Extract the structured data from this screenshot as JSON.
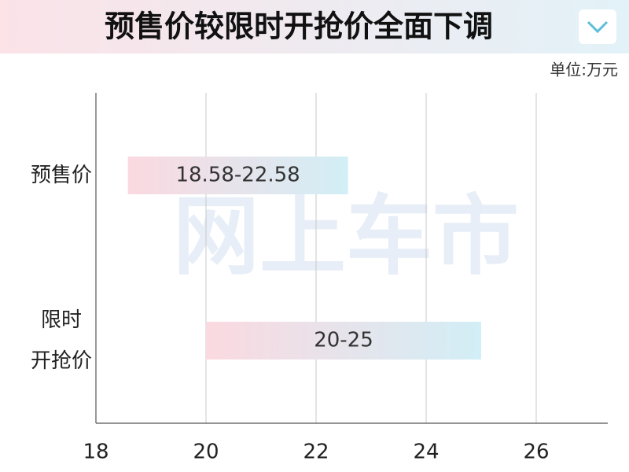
{
  "chart_data": {
    "type": "range-bar",
    "title": "预售价较限时开抢价全面下调",
    "unit": "单位:万元",
    "watermark": "网上车市",
    "categories": [
      "预售价",
      "限时\n开抢价"
    ],
    "low": [
      18.58,
      20
    ],
    "high": [
      22.58,
      25
    ],
    "value_labels": [
      "18.58-22.58",
      "20-25"
    ],
    "colors": [
      "#fbd9e0",
      "#d2eef6"
    ],
    "xlim": [
      18,
      27.3
    ],
    "xticks": [
      18,
      20,
      22,
      24,
      26
    ],
    "grid": true
  }
}
